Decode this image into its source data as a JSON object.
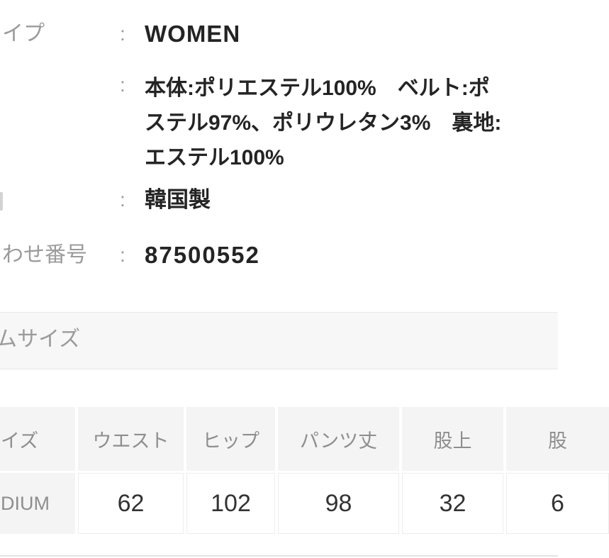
{
  "detail_rows": [
    {
      "label": "イプ",
      "separator": ":",
      "value": "WOMEN"
    },
    {
      "label": "",
      "separator": ":",
      "value_lines": [
        "本体:ポリエステル100%　ベルト:ポ",
        "ステル97%、ポリウレタン3%　裏地:",
        "エステル100%"
      ]
    },
    {
      "label": "",
      "separator": ":",
      "value": "韓国製"
    },
    {
      "label": "わせ番号",
      "separator": ":",
      "value": "87500552"
    }
  ],
  "section": {
    "title": "ムサイズ"
  },
  "size_table": {
    "headers": [
      "イズ",
      "ウエスト",
      "ヒップ",
      "パンツ丈",
      "股上",
      "股"
    ],
    "rows": [
      [
        "DIUM",
        "62",
        "102",
        "98",
        "32",
        "6"
      ]
    ]
  },
  "colors": {
    "label_gray": "#9b9b9b",
    "value_black": "#242424",
    "section_band_bg": "#f7f7f7",
    "table_header_bg": "#f4f4f4",
    "cell_border": "#ededed",
    "divider": "#e7e7e7"
  }
}
